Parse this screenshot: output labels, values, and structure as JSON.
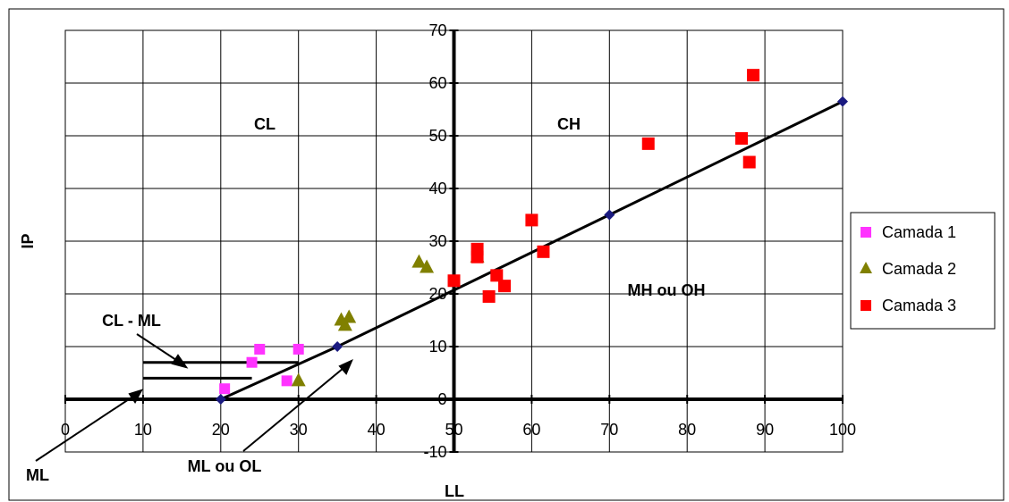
{
  "chart_data": {
    "type": "scatter",
    "title": "",
    "xlabel": "LL",
    "ylabel": "IP",
    "xlim": [
      0,
      100
    ],
    "ylim": [
      -10,
      70
    ],
    "xticks": [
      0,
      10,
      20,
      30,
      40,
      50,
      60,
      70,
      80,
      90,
      100
    ],
    "yticks": [
      -10,
      0,
      10,
      20,
      30,
      40,
      50,
      60,
      70
    ],
    "grid": true,
    "legend_position": "right",
    "a_line": {
      "points": [
        [
          20,
          0
        ],
        [
          35,
          10
        ],
        [
          70,
          35
        ],
        [
          100,
          56.5
        ]
      ],
      "color": "#000000",
      "marker_color": "#1a1a80"
    },
    "reference_lines": [
      {
        "x": [
          10,
          30
        ],
        "y": 7
      },
      {
        "x": [
          10,
          24
        ],
        "y": 4
      }
    ],
    "series": [
      {
        "name": "Camada 1",
        "marker": "square",
        "color": "#ff33ff",
        "points": [
          [
            20.5,
            2
          ],
          [
            24,
            7
          ],
          [
            25,
            9.5
          ],
          [
            28.5,
            3.5
          ],
          [
            30,
            9.5
          ]
        ]
      },
      {
        "name": "Camada 2",
        "marker": "triangle",
        "color": "#808000",
        "points": [
          [
            30,
            3.5
          ],
          [
            35.5,
            15
          ],
          [
            36,
            14
          ],
          [
            36.5,
            15.5
          ],
          [
            45.5,
            26
          ],
          [
            46.5,
            25
          ],
          [
            53,
            27
          ]
        ]
      },
      {
        "name": "Camada 3",
        "marker": "square",
        "color": "#ff0000",
        "points": [
          [
            50,
            22.5
          ],
          [
            53,
            28.5
          ],
          [
            53,
            27
          ],
          [
            54.5,
            19.5
          ],
          [
            55.5,
            23.5
          ],
          [
            56.5,
            21.5
          ],
          [
            60,
            34
          ],
          [
            61.5,
            28
          ],
          [
            75,
            48.5
          ],
          [
            87,
            49.5
          ],
          [
            88,
            45
          ],
          [
            88.5,
            61.5
          ]
        ]
      }
    ],
    "annotations": [
      {
        "text": "CL"
      },
      {
        "text": "CH"
      },
      {
        "text": "MH ou OH"
      },
      {
        "text": "CL - ML"
      },
      {
        "text": "ML"
      },
      {
        "text": "ML ou OL"
      }
    ]
  }
}
